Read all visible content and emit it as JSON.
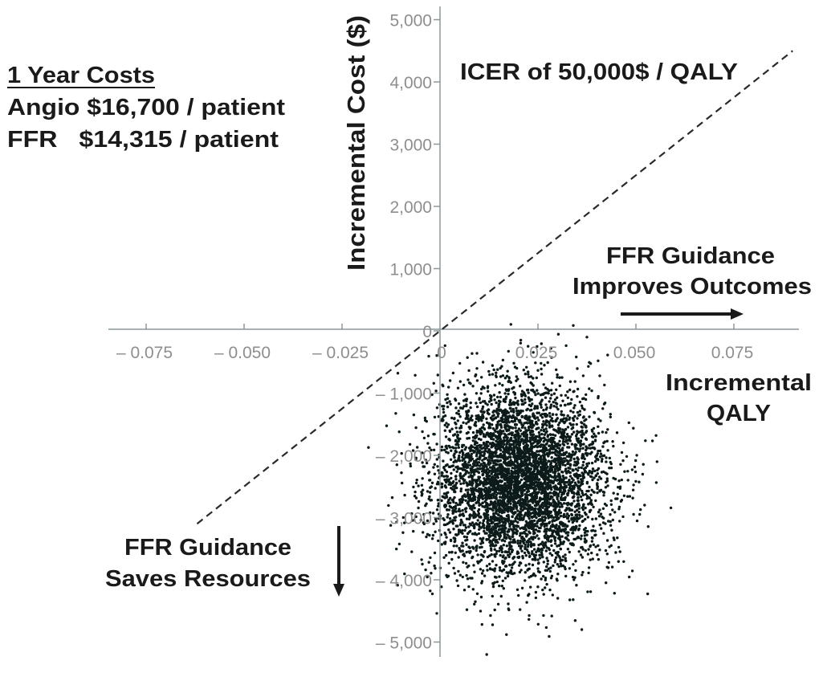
{
  "chart_data": {
    "type": "scatter",
    "title": "",
    "xlabel": "Incremental QALY",
    "xlabel_lines": [
      "Incremental",
      "QALY"
    ],
    "ylabel": "Incremental Cost ($)",
    "xlim": [
      -0.09,
      0.09
    ],
    "ylim": [
      -5200,
      5200
    ],
    "grid": false,
    "x_ticks": [
      -0.075,
      -0.05,
      -0.025,
      0,
      0.025,
      0.05,
      0.075
    ],
    "x_tick_labels": [
      "– 0.075",
      "– 0.050",
      "– 0.025",
      "0",
      "0.025",
      "0.050",
      "0.075"
    ],
    "y_ticks": [
      5000,
      4000,
      3000,
      2000,
      1000,
      0,
      -1000,
      -2000,
      -3000,
      -4000,
      -5000
    ],
    "y_tick_labels": [
      "5,000",
      "4,000",
      "3,000",
      "2,000",
      "1,000",
      "0",
      "– 1,000",
      "– 2,000",
      "– 3,000",
      "– 4,000",
      "– 5,000"
    ],
    "point_cloud": {
      "n": 5000,
      "mean_x": 0.02,
      "mean_y": -2400,
      "sd_x": 0.011,
      "sd_y": 750,
      "color": "#0d1a1a"
    },
    "threshold_line": {
      "label": "ICER of 50,000$ / QALY",
      "slope_per_qaly": 50000,
      "x_range": [
        -0.062,
        0.09
      ],
      "style": "dashed"
    },
    "annotations": {
      "costs_title": "1 Year Costs",
      "costs_lines": [
        "Angio $16,700 / patient",
        "FFR   $14,315 / patient"
      ],
      "improves": [
        "FFR Guidance",
        "Improves Outcomes"
      ],
      "saves": [
        "FFR Guidance",
        "Saves Resources"
      ]
    },
    "colors": {
      "axis": "#8a979b",
      "text": "#1a1a1a",
      "ticks": "#8e8e8e"
    }
  }
}
